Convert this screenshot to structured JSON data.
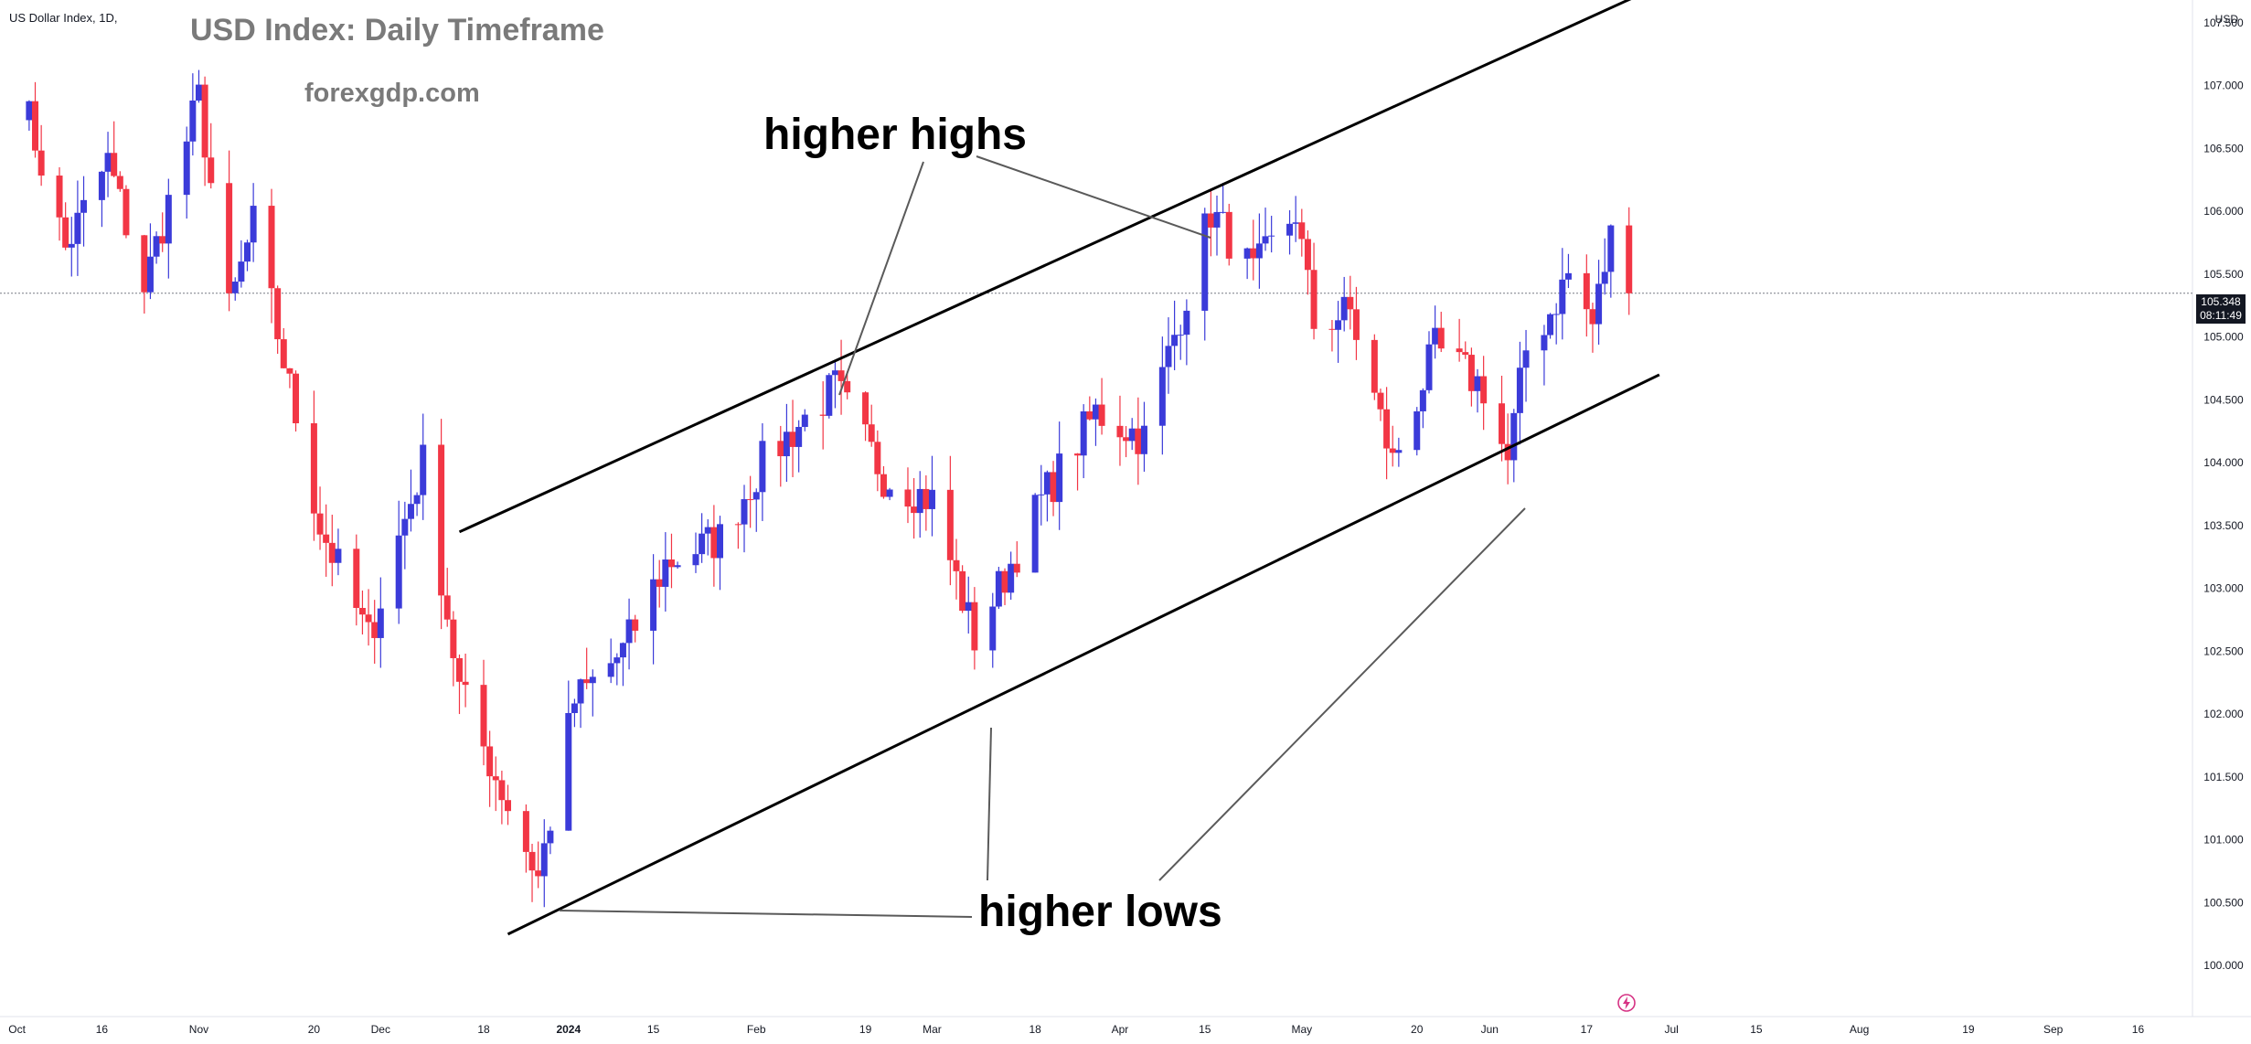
{
  "header": {
    "symbol_label": "US Dollar Index, 1D,",
    "currency": "USD",
    "title": "USD Index: Daily Timeframe",
    "watermark": "forexgdp.com"
  },
  "annotations": {
    "higher_highs": "higher highs",
    "higher_lows": "higher lows"
  },
  "last_price": {
    "value": "105.348",
    "countdown": "08:11:49"
  },
  "colors": {
    "bullish": "#3b3bd9",
    "bearish": "#f23645",
    "trendline": "#000000",
    "annotation_line": "#5a5a5a",
    "axis_text": "#131722"
  },
  "icons": [
    "lightning-bolt-icon"
  ],
  "chart_data": {
    "type": "candlestick",
    "timeframe": "1D",
    "x_tick_labels": [
      "Oct",
      "16",
      "Nov",
      "20",
      "Dec",
      "18",
      "2024",
      "15",
      "Feb",
      "19",
      "Mar",
      "18",
      "Apr",
      "15",
      "May",
      "20",
      "Jun",
      "17",
      "Jul",
      "15",
      "Aug",
      "19",
      "Sep",
      "16"
    ],
    "y_tick_labels": [
      "107.500",
      "107.000",
      "106.500",
      "106.000",
      "105.500",
      "105.000",
      "104.500",
      "104.000",
      "103.500",
      "103.000",
      "102.500",
      "102.000",
      "101.500",
      "101.000",
      "100.500",
      "100.000"
    ],
    "ylim": [
      99.9,
      107.55
    ],
    "grid": false,
    "x_range": [
      "2023-10-01",
      "2024-09-20"
    ],
    "current_price_line": 105.348,
    "anchors": [
      {
        "date": "2023-10-03",
        "price": 106.9
      },
      {
        "date": "2023-10-10",
        "price": 105.7
      },
      {
        "date": "2023-10-17",
        "price": 106.4
      },
      {
        "date": "2023-10-23",
        "price": 105.4
      },
      {
        "date": "2023-11-01",
        "price": 106.9
      },
      {
        "date": "2023-11-06",
        "price": 105.2
      },
      {
        "date": "2023-11-10",
        "price": 105.9
      },
      {
        "date": "2023-11-21",
        "price": 103.5
      },
      {
        "date": "2023-11-29",
        "price": 102.6
      },
      {
        "date": "2023-12-04",
        "price": 103.4
      },
      {
        "date": "2023-12-08",
        "price": 104.0
      },
      {
        "date": "2023-12-14",
        "price": 102.2
      },
      {
        "date": "2023-12-27",
        "price": 100.7
      },
      {
        "date": "2024-01-02",
        "price": 102.1
      },
      {
        "date": "2024-01-10",
        "price": 102.5
      },
      {
        "date": "2024-01-17",
        "price": 103.2
      },
      {
        "date": "2024-01-26",
        "price": 103.4
      },
      {
        "date": "2024-02-02",
        "price": 104.0
      },
      {
        "date": "2024-02-14",
        "price": 104.6
      },
      {
        "date": "2024-02-22",
        "price": 103.9
      },
      {
        "date": "2024-03-01",
        "price": 103.7
      },
      {
        "date": "2024-03-08",
        "price": 102.6
      },
      {
        "date": "2024-03-19",
        "price": 103.7
      },
      {
        "date": "2024-03-28",
        "price": 104.4
      },
      {
        "date": "2024-04-05",
        "price": 104.2
      },
      {
        "date": "2024-04-16",
        "price": 106.0
      },
      {
        "date": "2024-04-23",
        "price": 105.5
      },
      {
        "date": "2024-04-30",
        "price": 106.0
      },
      {
        "date": "2024-05-03",
        "price": 105.1
      },
      {
        "date": "2024-05-09",
        "price": 105.2
      },
      {
        "date": "2024-05-16",
        "price": 104.0
      },
      {
        "date": "2024-05-23",
        "price": 104.9
      },
      {
        "date": "2024-05-31",
        "price": 104.6
      },
      {
        "date": "2024-06-04",
        "price": 104.0
      },
      {
        "date": "2024-06-07",
        "price": 104.9
      },
      {
        "date": "2024-06-11",
        "price": 105.2
      },
      {
        "date": "2024-06-14",
        "price": 105.5
      },
      {
        "date": "2024-06-18",
        "price": 105.1
      },
      {
        "date": "2024-06-21",
        "price": 105.8
      },
      {
        "date": "2024-06-24",
        "price": 105.3
      }
    ],
    "trend_lines": [
      {
        "name": "upper channel",
        "start": {
          "date": "2023-12-14",
          "price": 103.45
        },
        "end": {
          "date": "2024-06-27",
          "price": 107.75
        }
      },
      {
        "name": "lower channel",
        "start": {
          "date": "2023-12-22",
          "price": 100.25
        },
        "end": {
          "date": "2024-06-29",
          "price": 104.7
        }
      }
    ]
  }
}
